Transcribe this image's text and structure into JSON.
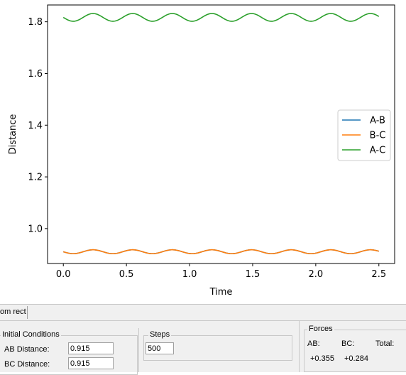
{
  "chart_data": {
    "type": "line",
    "xlabel": "Time",
    "ylabel": "Distance",
    "xlim": [
      -0.125,
      2.625
    ],
    "ylim": [
      0.865,
      1.865
    ],
    "xticks": [
      0.0,
      0.5,
      1.0,
      1.5,
      2.0,
      2.5
    ],
    "xtick_labels": [
      "0.0",
      "0.5",
      "1.0",
      "1.5",
      "2.0",
      "2.5"
    ],
    "yticks": [
      1.0,
      1.2,
      1.4,
      1.6,
      1.8
    ],
    "ytick_labels": [
      "1.0",
      "1.2",
      "1.4",
      "1.6",
      "1.8"
    ],
    "grid": false,
    "legend_position": "right",
    "series": [
      {
        "name": "A-B",
        "color": "#1f77b4",
        "x_start": 0.0,
        "x_end": 2.5,
        "mean": 0.9105,
        "amplitude": 0.0075,
        "period": 0.314,
        "phase": 0.25
      },
      {
        "name": "B-C",
        "color": "#ff7f0e",
        "x_start": 0.0,
        "x_end": 2.5,
        "mean": 0.9105,
        "amplitude": 0.0075,
        "period": 0.314,
        "phase": 0.25
      },
      {
        "name": "A-C",
        "color": "#2ca02c",
        "x_start": 0.0,
        "x_end": 2.5,
        "mean": 1.817,
        "amplitude": 0.015,
        "period": 0.314,
        "phase": 0.25
      }
    ]
  },
  "status": {
    "text": "om rect"
  },
  "initial_conditions": {
    "title": "Initial Conditions",
    "ab_label": "AB Distance:",
    "ab_value": "0.915",
    "bc_label": "BC Distance:",
    "bc_value": "0.915"
  },
  "steps": {
    "title": "Steps",
    "value": "500"
  },
  "forces": {
    "title": "Forces",
    "ab_label": "AB:",
    "bc_label": "BC:",
    "total_label": "Total:",
    "ab_value": "+0.355",
    "bc_value": "+0.284"
  }
}
